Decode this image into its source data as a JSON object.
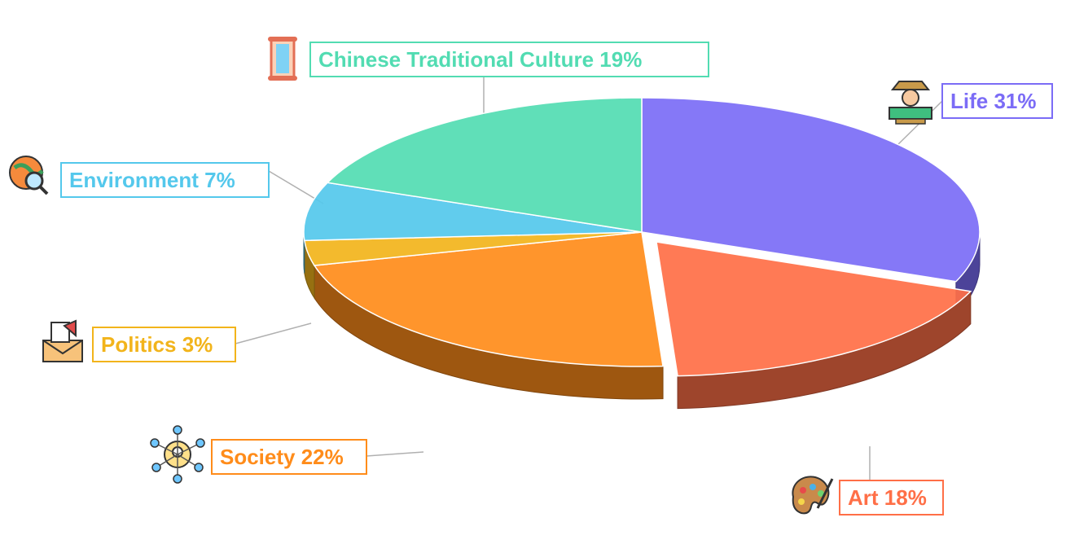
{
  "chart_data": {
    "type": "pie",
    "style": "3d-exploded",
    "slices": [
      {
        "name": "Life",
        "value": 31,
        "color": "#7b6cf6",
        "label": "Life 31%",
        "icon": "explorer-icon"
      },
      {
        "name": "Art",
        "value": 18,
        "color": "#ff6f47",
        "label": "Art 18%",
        "icon": "palette-icon"
      },
      {
        "name": "Society",
        "value": 22,
        "color": "#ff8c1a",
        "label": "Society 22%",
        "icon": "network-icon"
      },
      {
        "name": "Politics",
        "value": 3,
        "color": "#f2b41b",
        "label": "Politics 3%",
        "icon": "megaphone-mail-icon"
      },
      {
        "name": "Environment",
        "value": 7,
        "color": "#54c8ec",
        "label": "Environment 7%",
        "icon": "globe-magnifier-icon"
      },
      {
        "name": "Chinese Traditional Culture",
        "value": 19,
        "color": "#52dcb2",
        "label": "Chinese Traditional Culture 19%",
        "icon": "scroll-icon"
      }
    ],
    "legend": "none"
  }
}
